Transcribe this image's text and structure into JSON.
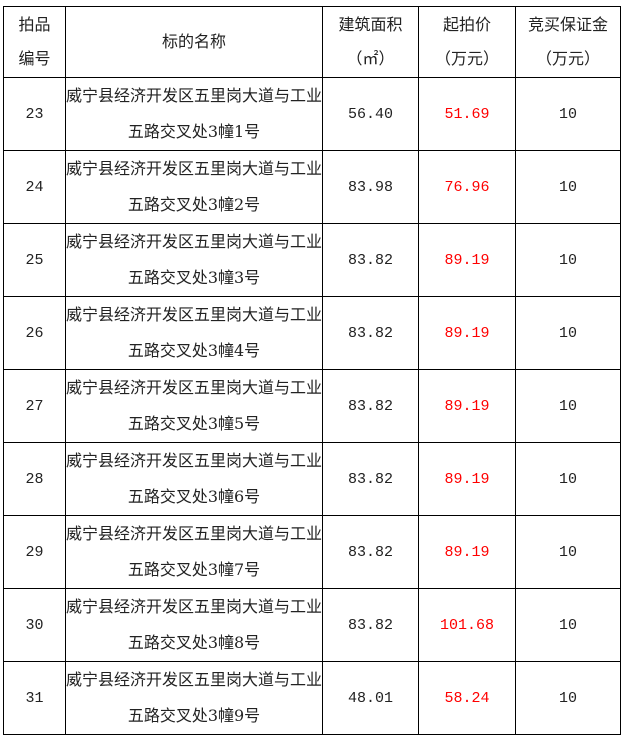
{
  "headers": {
    "lot": "拍品\n编号",
    "name": "标的名称",
    "area": "建筑面积\n（㎡）",
    "price": "起拍价\n（万元）",
    "deposit": "竞买保证金\n（万元）"
  },
  "price_color": "#ff0000",
  "rows": [
    {
      "lot": "23",
      "name": "威宁县经济开发区五里岗大道与工业五路交叉处3幢1号",
      "area": "56.40",
      "price": "51.69",
      "deposit": "10"
    },
    {
      "lot": "24",
      "name": "威宁县经济开发区五里岗大道与工业五路交叉处3幢2号",
      "area": "83.98",
      "price": "76.96",
      "deposit": "10"
    },
    {
      "lot": "25",
      "name": "威宁县经济开发区五里岗大道与工业五路交叉处3幢3号",
      "area": "83.82",
      "price": "89.19",
      "deposit": "10"
    },
    {
      "lot": "26",
      "name": "威宁县经济开发区五里岗大道与工业五路交叉处3幢4号",
      "area": "83.82",
      "price": "89.19",
      "deposit": "10"
    },
    {
      "lot": "27",
      "name": "威宁县经济开发区五里岗大道与工业五路交叉处3幢5号",
      "area": "83.82",
      "price": "89.19",
      "deposit": "10"
    },
    {
      "lot": "28",
      "name": "威宁县经济开发区五里岗大道与工业五路交叉处3幢6号",
      "area": "83.82",
      "price": "89.19",
      "deposit": "10"
    },
    {
      "lot": "29",
      "name": "威宁县经济开发区五里岗大道与工业五路交叉处3幢7号",
      "area": "83.82",
      "price": "89.19",
      "deposit": "10"
    },
    {
      "lot": "30",
      "name": "威宁县经济开发区五里岗大道与工业五路交叉处3幢8号",
      "area": "83.82",
      "price": "101.68",
      "deposit": "10"
    },
    {
      "lot": "31",
      "name": "威宁县经济开发区五里岗大道与工业五路交叉处3幢9号",
      "area": "48.01",
      "price": "58.24",
      "deposit": "10"
    }
  ]
}
